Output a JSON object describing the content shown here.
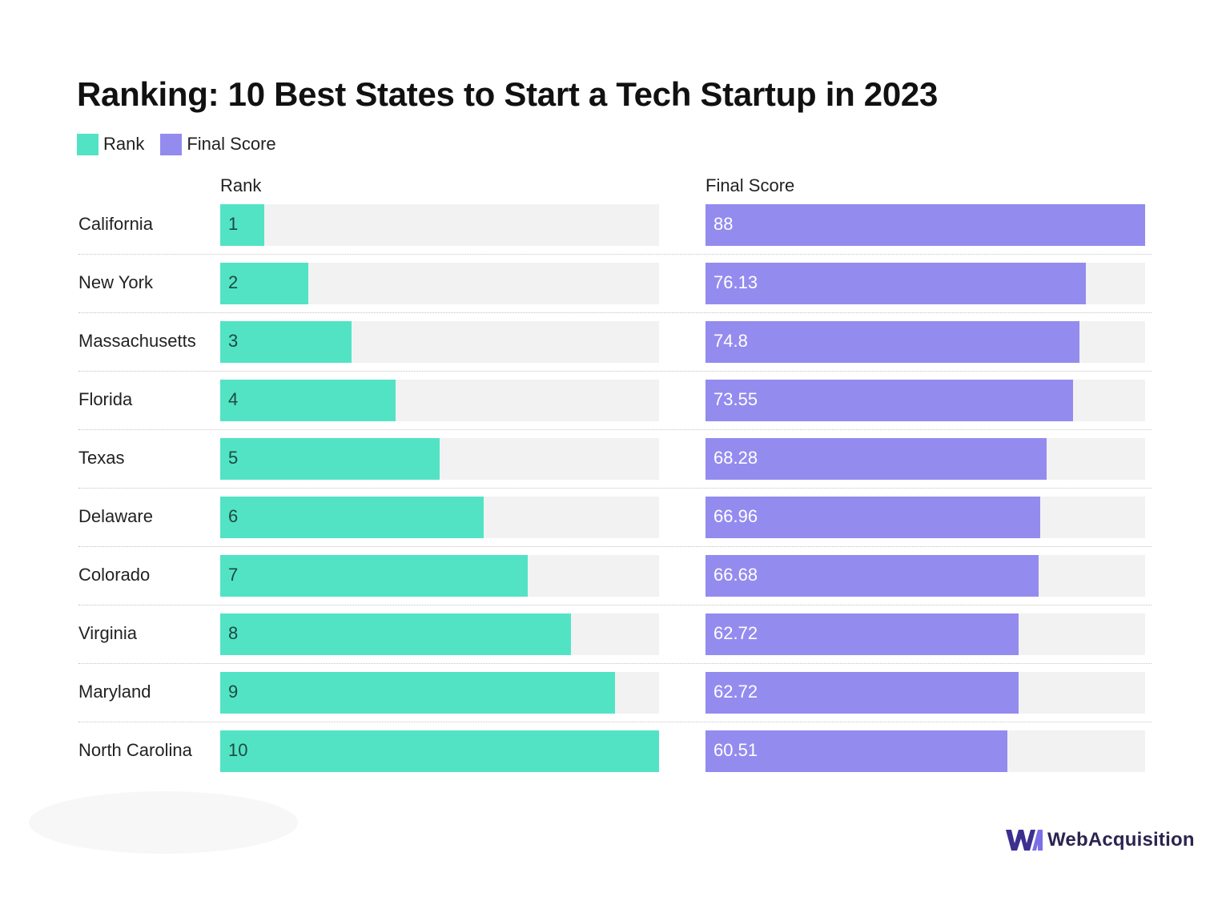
{
  "chart_data": {
    "type": "bar",
    "orientation": "horizontal",
    "title": "Ranking: 10 Best States to Start a Tech Startup in 2023",
    "legend": [
      "Rank",
      "Final Score"
    ],
    "categories": [
      "California",
      "New York",
      "Massachusetts",
      "Florida",
      "Texas",
      "Delaware",
      "Colorado",
      "Virginia",
      "Maryland",
      "North Carolina"
    ],
    "series": [
      {
        "name": "Rank",
        "header": "Rank",
        "color": "#52e3c5",
        "values": [
          1,
          2,
          3,
          4,
          5,
          6,
          7,
          8,
          9,
          10
        ],
        "labels": [
          "1",
          "2",
          "3",
          "4",
          "5",
          "6",
          "7",
          "8",
          "9",
          "10"
        ],
        "xlim": [
          0,
          10
        ]
      },
      {
        "name": "Final Score",
        "header": "Final Score",
        "color": "#948bef",
        "values": [
          88,
          76.13,
          74.8,
          73.55,
          68.28,
          66.96,
          66.68,
          62.72,
          62.72,
          60.51
        ],
        "labels": [
          "88",
          "76.13",
          "74.8",
          "73.55",
          "68.28",
          "66.96",
          "66.68",
          "62.72",
          "62.72",
          "60.51"
        ],
        "xlim": [
          0,
          88
        ]
      }
    ]
  },
  "brand": {
    "name": "WebAcquisition",
    "logo_text": "WA",
    "logo_color": "#3b2f8f"
  }
}
